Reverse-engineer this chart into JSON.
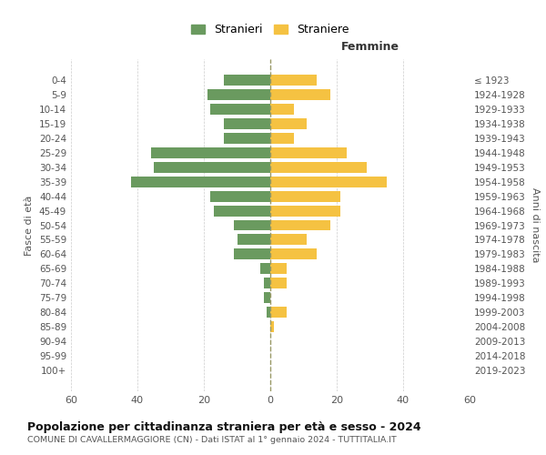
{
  "age_groups": [
    "0-4",
    "5-9",
    "10-14",
    "15-19",
    "20-24",
    "25-29",
    "30-34",
    "35-39",
    "40-44",
    "45-49",
    "50-54",
    "55-59",
    "60-64",
    "65-69",
    "70-74",
    "75-79",
    "80-84",
    "85-89",
    "90-94",
    "95-99",
    "100+"
  ],
  "birth_years": [
    "2019-2023",
    "2014-2018",
    "2009-2013",
    "2004-2008",
    "1999-2003",
    "1994-1998",
    "1989-1993",
    "1984-1988",
    "1979-1983",
    "1974-1978",
    "1969-1973",
    "1964-1968",
    "1959-1963",
    "1954-1958",
    "1949-1953",
    "1944-1948",
    "1939-1943",
    "1934-1938",
    "1929-1933",
    "1924-1928",
    "≤ 1923"
  ],
  "males": [
    14,
    19,
    18,
    14,
    14,
    36,
    35,
    42,
    18,
    17,
    11,
    10,
    11,
    3,
    2,
    2,
    1,
    0,
    0,
    0,
    0
  ],
  "females": [
    14,
    18,
    7,
    11,
    7,
    23,
    29,
    35,
    21,
    21,
    18,
    11,
    14,
    5,
    5,
    0,
    5,
    1,
    0,
    0,
    0
  ],
  "male_color": "#6a9a5f",
  "female_color": "#f5c242",
  "grid_color": "#cccccc",
  "center_line_color": "#999966",
  "title": "Popolazione per cittadinanza straniera per età e sesso - 2024",
  "subtitle": "COMUNE DI CAVALLERMAGGIORE (CN) - Dati ISTAT al 1° gennaio 2024 - TUTTITALIA.IT",
  "xlabel_right": "Femmine",
  "ylabel_left": "Fasce di età",
  "ylabel_right": "Anni di nascita",
  "legend_male": "Stranieri",
  "legend_female": "Straniere",
  "xlim": 60,
  "background_color": "#ffffff",
  "bar_height": 0.75
}
